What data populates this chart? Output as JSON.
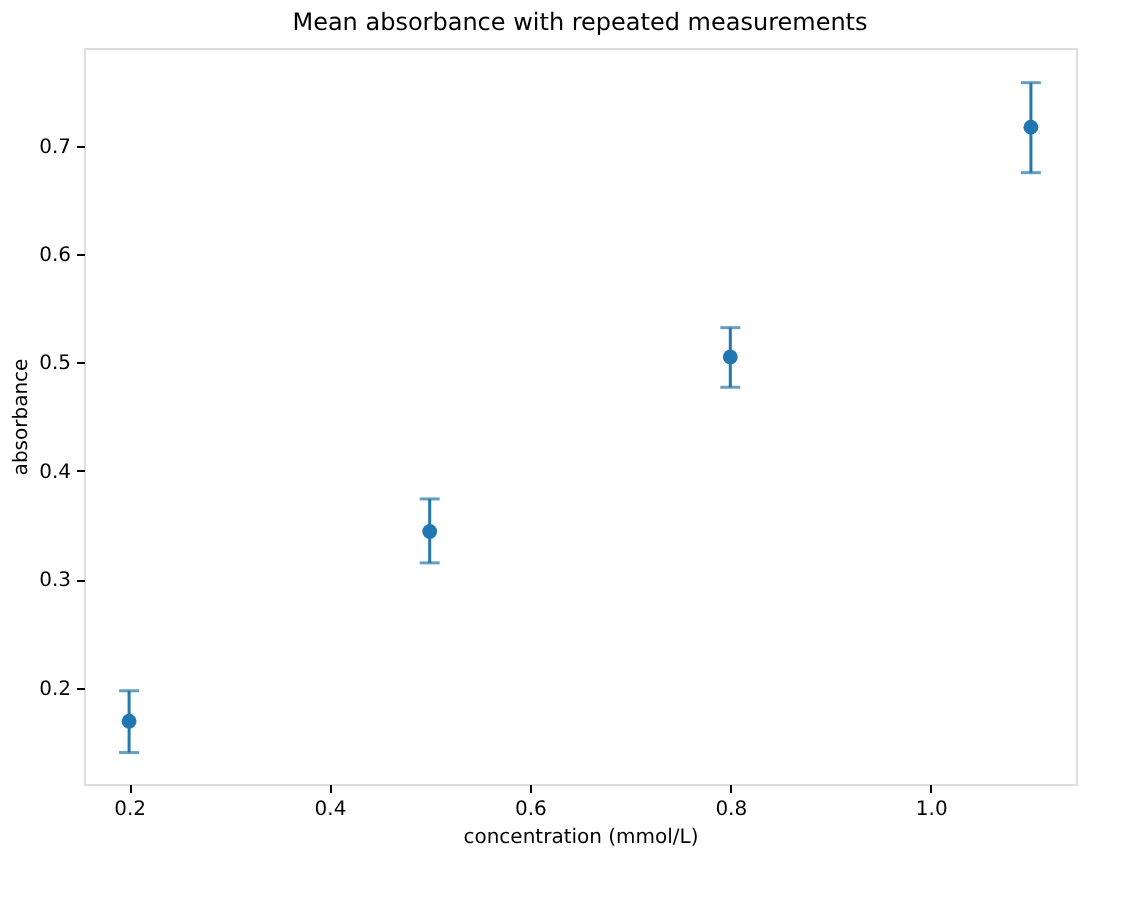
{
  "chart_data": {
    "type": "scatter",
    "title": "Mean absorbance with repeated measurements",
    "xlabel": "concentration (mmol/L)",
    "ylabel": "absorbance",
    "x": [
      0.2,
      0.5,
      0.8,
      1.1
    ],
    "series": [
      {
        "color": "#1f77b4",
        "values": [
          0.169,
          0.344,
          0.505,
          0.717
        ],
        "errors": [
          [
            0.14,
            0.197
          ],
          [
            0.315,
            0.374
          ],
          [
            0.477,
            0.532
          ],
          [
            0.675,
            0.758
          ]
        ]
      }
    ],
    "xlim": [
      0.155,
      1.145
    ],
    "ylim": [
      0.111,
      0.79
    ],
    "xticks": [
      {
        "value": 0.2,
        "label": "0.2"
      },
      {
        "value": 0.4,
        "label": "0.4"
      },
      {
        "value": 0.6,
        "label": "0.6"
      },
      {
        "value": 0.8,
        "label": "0.8"
      },
      {
        "value": 1.0,
        "label": "1.0"
      }
    ],
    "yticks": [
      0.2,
      0.3,
      0.4,
      0.5,
      0.6,
      0.7
    ],
    "grid": false,
    "marker": "circle"
  }
}
